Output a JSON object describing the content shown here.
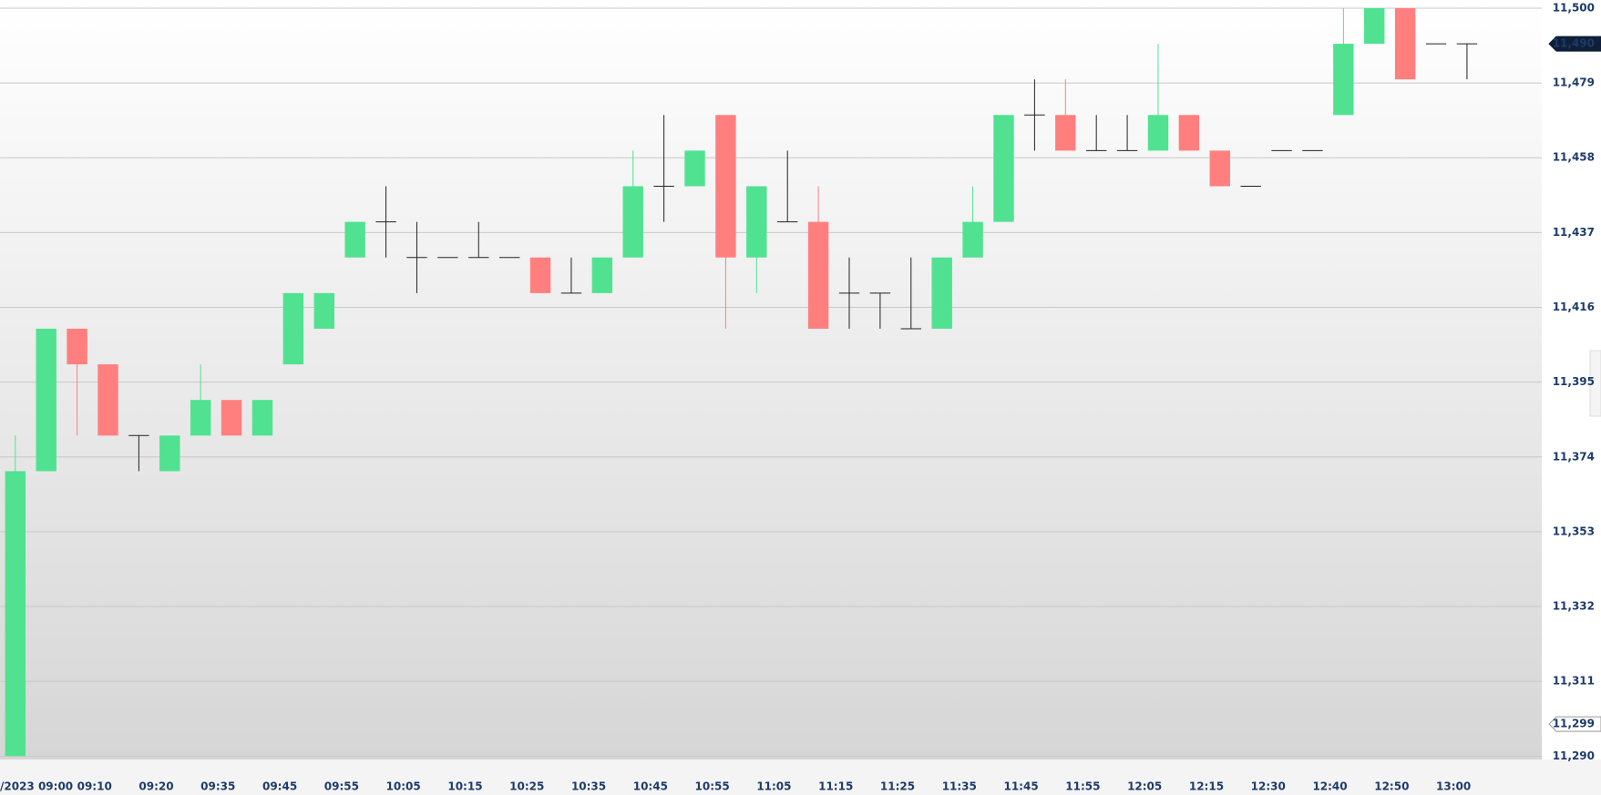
{
  "chart_data": {
    "type": "candlestick",
    "categories": [
      "/2023 09:00",
      null,
      "09:10",
      null,
      "09:20",
      null,
      "09:35",
      null,
      "09:45",
      null,
      "09:55",
      null,
      "10:05",
      null,
      "10:15",
      null,
      "10:25",
      null,
      "10:35",
      null,
      "10:45",
      null,
      "10:55",
      null,
      "11:05",
      null,
      "11:15",
      null,
      "11:25",
      null,
      "11:35",
      null,
      "11:45",
      null,
      "11:55",
      null,
      "12:05",
      null,
      "12:15",
      null,
      "12:30",
      null,
      "12:40",
      null,
      "12:50",
      null,
      "13:00",
      null
    ],
    "open": [
      11290,
      11370,
      11410,
      11400,
      11380,
      11370,
      11380,
      11390,
      11380,
      11400,
      11410,
      11430,
      11440,
      11430,
      11430,
      11430,
      11430,
      11430,
      11420,
      11420,
      11430,
      11450,
      11450,
      11470,
      11430,
      11440,
      11440,
      11420,
      11420,
      11410,
      11410,
      11430,
      11440,
      11470,
      11470,
      11460,
      11460,
      11460,
      11470,
      11460,
      11450,
      11460,
      11460,
      11470,
      11490,
      11500,
      11490,
      11490
    ],
    "high": [
      11380,
      11410,
      11410,
      11400,
      11380,
      11380,
      11400,
      11390,
      11390,
      11420,
      11420,
      11440,
      11450,
      11440,
      11430,
      11440,
      11430,
      11430,
      11430,
      11430,
      11460,
      11470,
      11460,
      11470,
      11450,
      11460,
      11450,
      11430,
      11420,
      11430,
      11430,
      11450,
      11470,
      11480,
      11480,
      11470,
      11470,
      11490,
      11470,
      11460,
      11450,
      11460,
      11460,
      11500,
      11500,
      11500,
      11490,
      11490
    ],
    "low": [
      11290,
      11370,
      11380,
      11380,
      11370,
      11370,
      11380,
      11380,
      11380,
      11400,
      11410,
      11430,
      11430,
      11420,
      11430,
      11430,
      11430,
      11420,
      11420,
      11420,
      11430,
      11440,
      11450,
      11410,
      11420,
      11440,
      11410,
      11410,
      11410,
      11410,
      11410,
      11430,
      11440,
      11460,
      11460,
      11460,
      11460,
      11460,
      11460,
      11450,
      11450,
      11460,
      11460,
      11470,
      11490,
      11480,
      11490,
      11480
    ],
    "close": [
      11370,
      11410,
      11400,
      11380,
      11380,
      11380,
      11390,
      11380,
      11390,
      11420,
      11420,
      11440,
      11440,
      11430,
      11430,
      11430,
      11430,
      11420,
      11420,
      11430,
      11450,
      11450,
      11460,
      11430,
      11450,
      11440,
      11410,
      11420,
      11420,
      11410,
      11430,
      11440,
      11470,
      11470,
      11460,
      11460,
      11460,
      11470,
      11460,
      11450,
      11450,
      11460,
      11460,
      11490,
      11500,
      11480,
      11490,
      11490
    ],
    "up_color": "#50e290",
    "down_color": "#ff7f7f",
    "flat_color": "#222222",
    "ylim": [
      11290,
      11500
    ],
    "yticks": [
      {
        "value": 11290,
        "label": "11,290"
      },
      {
        "value": 11311,
        "label": "11,311"
      },
      {
        "value": 11332,
        "label": "11,332"
      },
      {
        "value": 11353,
        "label": "11,353"
      },
      {
        "value": 11374,
        "label": "11,374"
      },
      {
        "value": 11395,
        "label": "11,395"
      },
      {
        "value": 11416,
        "label": "11,416"
      },
      {
        "value": 11437,
        "label": "11,437"
      },
      {
        "value": 11458,
        "label": "11,458"
      },
      {
        "value": 11479,
        "label": "11,479"
      },
      {
        "value": 11500,
        "label": "11,500"
      }
    ],
    "grid": true,
    "price_markers": [
      {
        "value": 11490,
        "label": "11,490",
        "color": "#0f1f38"
      },
      {
        "value": 11299,
        "label": "11,299",
        "color": "#ffffff"
      }
    ]
  }
}
